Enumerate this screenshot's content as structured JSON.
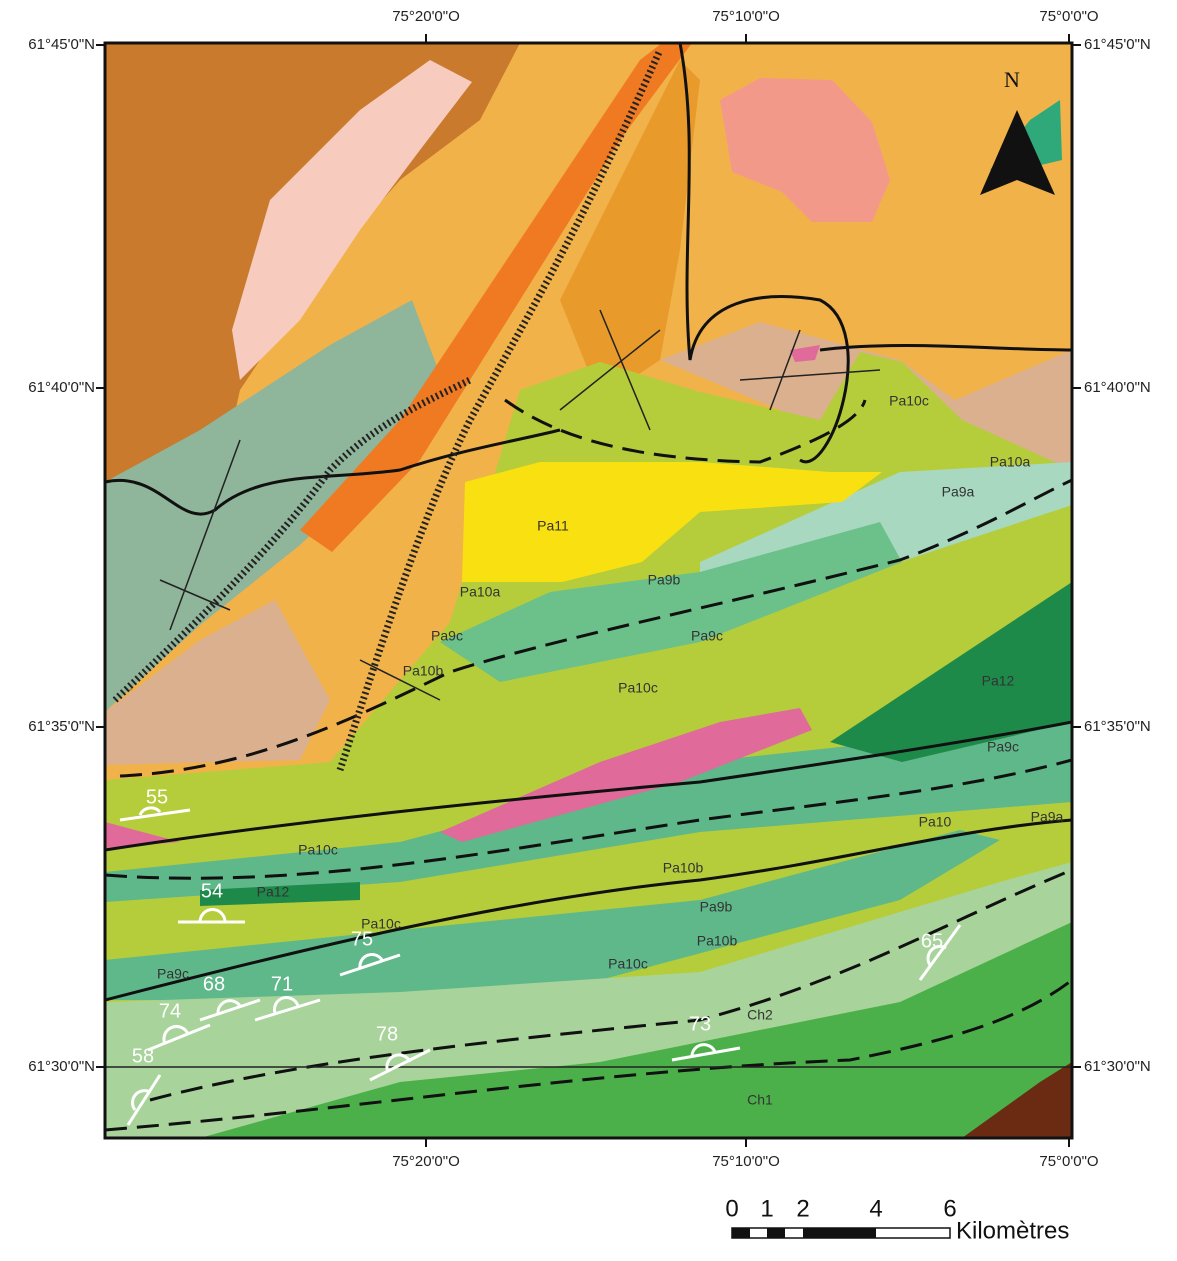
{
  "map": {
    "top_labels": [
      "75°20'0\"O",
      "75°10'0\"O",
      "75°0'0\"O"
    ],
    "bottom_labels": [
      "75°20'0\"O",
      "75°10'0\"O",
      "75°0'0\"O"
    ],
    "left_labels": [
      "61°45'0\"N",
      "61°40'0\"N",
      "61°35'0\"N",
      "61°30'0\"N"
    ],
    "right_labels": [
      "61°45'0\"N",
      "61°40'0\"N",
      "61°35'0\"N",
      "61°30'0\"N"
    ],
    "units": [
      "Pa11",
      "Pa10a",
      "Pa9c",
      "Pa10b",
      "Pa9b",
      "Pa9c",
      "Pa10c",
      "Pa10c",
      "Pa10a",
      "Pa9a",
      "Pa12",
      "Pa9c",
      "Pa10",
      "Pa9a",
      "Pa10c",
      "Pa10b",
      "Pa12",
      "Pa10c",
      "Pa9b",
      "Pa10b",
      "Pa10c",
      "Pa9c",
      "Ch2",
      "Ch1"
    ],
    "dips": [
      55,
      54,
      75,
      68,
      71,
      74,
      78,
      73,
      65,
      58
    ],
    "north": "N",
    "scale": {
      "ticks": [
        0,
        1,
        2,
        4,
        6
      ],
      "unit": "Kilomètres"
    }
  }
}
